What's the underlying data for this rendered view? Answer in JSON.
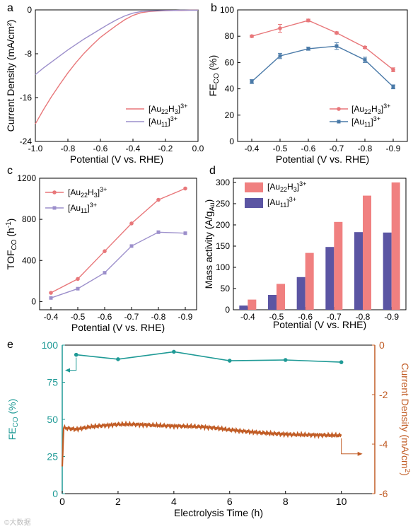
{
  "colors": {
    "red": "#E8777A",
    "blue": "#4A7AA8",
    "lavender": "#9C8FCB",
    "bar_red": "#F08080",
    "bar_blue": "#5B55A3",
    "teal": "#1F9A96",
    "brown": "#C15C25"
  },
  "watermark": "©大数据",
  "chart_data": [
    {
      "panel": "a",
      "type": "line",
      "xlabel": "Potential (V vs. RHE)",
      "ylabel": "Current Density (mA/cm²)",
      "xlim": [
        -1.0,
        0.0
      ],
      "ylim": [
        -24,
        0
      ],
      "xticks": [
        "-1.0",
        "-0.8",
        "-0.6",
        "-0.4",
        "-0.2",
        "0.0"
      ],
      "yticks": [
        "0",
        "-8",
        "-16",
        "-24"
      ],
      "legend_placement": "bottom-right",
      "series": [
        {
          "name": "[Au22H3]3+",
          "name_main": "[Au",
          "name_sub": "22",
          "name_mid": "H",
          "name_sub2": "3",
          "name_sup": "3+",
          "color": "red",
          "x": [
            -1.0,
            -0.95,
            -0.9,
            -0.85,
            -0.8,
            -0.75,
            -0.7,
            -0.65,
            -0.6,
            -0.55,
            -0.5,
            -0.45,
            -0.4,
            -0.35,
            -0.3,
            -0.25,
            -0.2,
            -0.15,
            -0.1,
            -0.05,
            0.0
          ],
          "y": [
            -20.8,
            -18.2,
            -15.8,
            -13.6,
            -11.5,
            -9.6,
            -7.9,
            -6.4,
            -5.0,
            -3.9,
            -2.8,
            -1.8,
            -1.0,
            -0.5,
            -0.3,
            -0.2,
            -0.15,
            -0.1,
            -0.1,
            -0.05,
            -0.05
          ]
        },
        {
          "name": "[Au11]3+",
          "name_main": "[Au",
          "name_sub": "11",
          "name_mid": "",
          "name_sub2": "",
          "name_sup": "3+",
          "color": "lavender",
          "x": [
            -1.0,
            -0.95,
            -0.9,
            -0.85,
            -0.8,
            -0.75,
            -0.7,
            -0.65,
            -0.6,
            -0.55,
            -0.5,
            -0.45,
            -0.4,
            -0.35,
            -0.3,
            -0.25,
            -0.2,
            -0.15,
            -0.1,
            -0.05,
            0.0
          ],
          "y": [
            -11.8,
            -10.6,
            -9.5,
            -8.4,
            -7.3,
            -6.3,
            -5.3,
            -4.4,
            -3.5,
            -2.6,
            -1.8,
            -1.1,
            -0.6,
            -0.3,
            -0.2,
            -0.15,
            -0.1,
            -0.1,
            -0.05,
            -0.05,
            -0.05
          ]
        }
      ]
    },
    {
      "panel": "b",
      "type": "line",
      "xlabel": "Potential (V vs. RHE)",
      "ylabel": "FECO (%)",
      "ylabel_main": "FE",
      "ylabel_sub": "CO",
      "ylabel_tail": " (%)",
      "categories": [
        "-0.4",
        "-0.5",
        "-0.6",
        "-0.7",
        "-0.8",
        "-0.9"
      ],
      "ylim": [
        0,
        100
      ],
      "yticks": [
        "0",
        "20",
        "40",
        "60",
        "80",
        "100"
      ],
      "legend_placement": "bottom-right",
      "series": [
        {
          "name": "[Au22H3]3+",
          "name_main": "[Au",
          "name_sub": "22",
          "name_mid": "H",
          "name_sub2": "3",
          "name_sup": "3+",
          "color": "red",
          "values": [
            80,
            86,
            92,
            82.5,
            71.5,
            54.5
          ],
          "errors": [
            0.8,
            3.0,
            1.0,
            0.8,
            0.8,
            1.5
          ]
        },
        {
          "name": "[Au11]3+",
          "name_main": "[Au",
          "name_sub": "11",
          "name_mid": "",
          "name_sub2": "",
          "name_sup": "3+",
          "color": "blue",
          "values": [
            45.5,
            65,
            70.5,
            72.5,
            62,
            41.5
          ],
          "errors": [
            1.5,
            2.0,
            1.2,
            2.5,
            2.0,
            1.5
          ]
        }
      ]
    },
    {
      "panel": "c",
      "type": "line",
      "xlabel": "Potential (V vs. RHE)",
      "ylabel": "TOFCO (h-1)",
      "ylabel_main": "TOF",
      "ylabel_sub": "CO",
      "ylabel_tail": " (h",
      "ylabel_sup": "-1",
      "ylabel_end": ")",
      "categories": [
        "-0.4",
        "-0.5",
        "-0.6",
        "-0.7",
        "-0.8",
        "-0.9"
      ],
      "ylim": [
        -80,
        1200
      ],
      "yticks": [
        "0",
        "400",
        "800",
        "1200"
      ],
      "legend_placement": "top-left",
      "series": [
        {
          "name": "[Au22H3]3+",
          "name_main": "[Au",
          "name_sub": "22",
          "name_mid": "H",
          "name_sub2": "3",
          "name_sup": "3+",
          "color": "red",
          "values": [
            85,
            220,
            490,
            760,
            990,
            1100
          ]
        },
        {
          "name": "[Au11]3+",
          "name_main": "[Au",
          "name_sub": "11",
          "name_mid": "",
          "name_sub2": "",
          "name_sup": "3+",
          "color": "lavender",
          "values": [
            35,
            125,
            280,
            540,
            675,
            665
          ]
        }
      ]
    },
    {
      "panel": "d",
      "type": "bar",
      "xlabel": "Potential (V vs. RHE)",
      "ylabel": "Mass activity (A/gAu)",
      "ylabel_main": "Mass activity (A/g",
      "ylabel_sub": "Au",
      "ylabel_tail": ")",
      "categories": [
        "-0.4",
        "-0.5",
        "-0.6",
        "-0.7",
        "-0.8",
        "-0.9"
      ],
      "ylim": [
        0,
        310
      ],
      "yticks": [
        "0",
        "50",
        "100",
        "150",
        "200",
        "250",
        "300"
      ],
      "legend_placement": "top-left",
      "series": [
        {
          "name": "[Au11]3+",
          "name_main": "[Au",
          "name_sub": "11",
          "name_mid": "",
          "name_sub2": "",
          "name_sup": "3+",
          "color": "bar_blue",
          "values": [
            10,
            35,
            77,
            148,
            183,
            182
          ]
        },
        {
          "name": "[Au22H3]3+",
          "name_main": "[Au",
          "name_sub": "22",
          "name_mid": "H",
          "name_sub2": "3",
          "name_sup": "3+",
          "color": "bar_red",
          "values": [
            24,
            61,
            134,
            207,
            269,
            300
          ]
        }
      ]
    },
    {
      "panel": "e",
      "type": "line",
      "xlabel": "Electrolysis Time (h)",
      "xlim": [
        0,
        11.2
      ],
      "xticks": [
        "0",
        "2",
        "4",
        "6",
        "8",
        "10"
      ],
      "y_left": {
        "label": "FECO (%)",
        "label_main": "FE",
        "label_sub": "CO",
        "label_tail": " (%)",
        "lim": [
          0,
          100
        ],
        "ticks": [
          "0",
          "25",
          "50",
          "75",
          "100"
        ],
        "color": "teal"
      },
      "y_right": {
        "label": "Current Density (mA/cm2)",
        "label_main": "Current Density (mA/cm",
        "label_sup": "2",
        "label_tail": ")",
        "lim": [
          -6,
          0
        ],
        "ticks": [
          "-6",
          "-4",
          "-2",
          "0"
        ],
        "color": "brown"
      },
      "series": [
        {
          "name": "FECO",
          "axis": "left",
          "color": "teal",
          "x": [
            0.5,
            2,
            4,
            6,
            8,
            10
          ],
          "y": [
            93.5,
            90.5,
            95.5,
            89.5,
            90,
            88.5
          ]
        },
        {
          "name": "Current Density",
          "axis": "right",
          "color": "brown",
          "x": [
            0,
            0.05,
            0.1,
            0.3,
            0.5,
            1,
            1.5,
            2,
            2.5,
            3,
            3.5,
            4,
            4.5,
            5,
            5.5,
            6,
            6.5,
            7,
            7.5,
            8,
            8.5,
            9,
            9.5,
            10
          ],
          "y": [
            -4.9,
            -3.3,
            -3.35,
            -3.38,
            -3.4,
            -3.3,
            -3.25,
            -3.2,
            -3.2,
            -3.22,
            -3.25,
            -3.27,
            -3.28,
            -3.3,
            -3.35,
            -3.42,
            -3.48,
            -3.53,
            -3.57,
            -3.6,
            -3.62,
            -3.63,
            -3.64,
            -3.65
          ]
        }
      ]
    }
  ]
}
